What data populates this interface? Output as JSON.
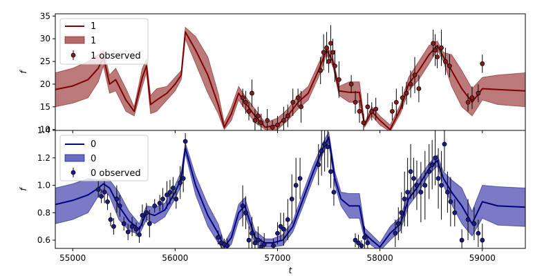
{
  "chart_data": [
    {
      "type": "line",
      "xlabel": "",
      "ylabel": "f",
      "xlim": [
        54830,
        59420
      ],
      "ylim": [
        9.8,
        35.5
      ],
      "yticks": [
        10,
        15,
        20,
        25,
        30,
        35
      ],
      "xticks": [
        55000,
        56000,
        57000,
        58000,
        59000
      ],
      "show_xticklabels": false,
      "legend_position": "top-left",
      "colors": {
        "line": "#800000",
        "band": "#b36b6b",
        "marker": "#8b1a1a"
      },
      "legend": {
        "line": "1",
        "band": "1",
        "observed": "1 observed"
      },
      "series": [
        {
          "name": "1",
          "x": [
            54830,
            55000,
            55150,
            55250,
            55300,
            55360,
            55420,
            55520,
            55600,
            55680,
            55720,
            55760,
            55820,
            55920,
            56000,
            56060,
            56100,
            56200,
            56320,
            56420,
            56480,
            56550,
            56620,
            56680,
            56780,
            56880,
            57000,
            57100,
            57200,
            57300,
            57400,
            57480,
            57540,
            57600,
            57700,
            57800,
            57850,
            57920,
            58000,
            58100,
            58200,
            58280,
            58380,
            58480,
            58560,
            58620,
            58700,
            58800,
            58900,
            59000,
            59150,
            59420
          ],
          "mean": [
            18.8,
            19.6,
            21.0,
            23.5,
            26.0,
            20.0,
            21.0,
            16.5,
            14.0,
            21.5,
            24.0,
            15.5,
            16.5,
            18.0,
            20.0,
            22.0,
            31.5,
            27.5,
            22.0,
            15.5,
            10.5,
            13.5,
            18.0,
            16.0,
            13.0,
            10.5,
            11.0,
            13.0,
            16.0,
            18.0,
            23.0,
            27.5,
            25.0,
            18.5,
            18.2,
            18.2,
            11.0,
            14.0,
            12.0,
            10.0,
            14.5,
            20.0,
            23.0,
            26.5,
            28.5,
            26.0,
            23.0,
            19.0,
            16.0,
            19.0,
            18.8,
            18.5
          ],
          "lower": [
            15.0,
            15.8,
            17.0,
            20.5,
            24.0,
            18.0,
            18.5,
            14.0,
            13.0,
            19.5,
            22.5,
            13.5,
            14.0,
            16.5,
            18.5,
            21.0,
            30.0,
            24.5,
            18.0,
            13.5,
            10.0,
            12.0,
            16.5,
            14.5,
            11.5,
            10.0,
            10.0,
            12.0,
            14.5,
            16.5,
            21.5,
            26.5,
            24.0,
            17.5,
            16.0,
            16.0,
            10.5,
            13.0,
            11.0,
            9.5,
            13.5,
            18.5,
            21.0,
            24.5,
            27.5,
            25.0,
            19.5,
            15.0,
            13.0,
            16.5,
            15.5,
            15.0
          ],
          "upper": [
            22.5,
            23.5,
            25.0,
            26.5,
            27.5,
            22.0,
            23.5,
            19.0,
            15.0,
            23.5,
            25.5,
            17.5,
            19.0,
            19.5,
            21.5,
            23.0,
            32.5,
            30.5,
            26.0,
            18.0,
            11.5,
            15.0,
            19.5,
            17.5,
            14.5,
            11.5,
            12.5,
            14.5,
            17.5,
            19.5,
            24.5,
            28.5,
            26.0,
            19.5,
            20.5,
            20.5,
            11.5,
            15.0,
            13.0,
            11.0,
            15.5,
            21.5,
            25.0,
            28.5,
            29.5,
            27.0,
            26.5,
            23.0,
            19.0,
            21.5,
            22.0,
            22.5
          ]
        }
      ],
      "observed": {
        "name": "1 observed",
        "x": [
          56660,
          56690,
          56720,
          56750,
          56780,
          56810,
          56840,
          56900,
          56950,
          57000,
          57060,
          57100,
          57150,
          57200,
          57230,
          57420,
          57450,
          57480,
          57500,
          57520,
          57540,
          57560,
          57600,
          57720,
          57760,
          57800,
          57840,
          57880,
          57920,
          57960,
          58120,
          58160,
          58220,
          58260,
          58300,
          58340,
          58380,
          58520,
          58540,
          58560,
          58600,
          58640,
          58680,
          58860,
          58900,
          58960,
          59000
        ],
        "y": [
          17.0,
          16.0,
          14.0,
          18.0,
          12.0,
          13.0,
          11.5,
          12.0,
          10.5,
          11.0,
          12.0,
          13.0,
          16.0,
          17.0,
          15.0,
          23.0,
          27.0,
          28.0,
          25.0,
          29.0,
          27.0,
          24.0,
          21.0,
          20.0,
          16.0,
          14.0,
          11.5,
          15.0,
          14.0,
          14.5,
          14.0,
          16.0,
          17.0,
          18.0,
          20.0,
          22.0,
          19.0,
          29.0,
          27.5,
          26.0,
          28.0,
          25.0,
          24.0,
          16.0,
          17.0,
          18.0,
          24.5
        ],
        "yerr": [
          2.0,
          2.5,
          2.0,
          3.0,
          2.5,
          2.0,
          2.0,
          2.5,
          1.5,
          2.0,
          3.0,
          2.5,
          3.0,
          2.0,
          3.5,
          3.0,
          4.0,
          3.5,
          2.5,
          4.0,
          3.0,
          3.5,
          4.0,
          2.0,
          2.5,
          2.5,
          2.0,
          3.0,
          2.0,
          2.5,
          2.0,
          3.0,
          2.5,
          2.5,
          3.0,
          4.0,
          3.0,
          3.0,
          3.5,
          2.5,
          4.0,
          3.0,
          2.5,
          2.0,
          2.5,
          2.0,
          2.0
        ]
      }
    },
    {
      "type": "line",
      "xlabel": "t",
      "ylabel": "f",
      "xlim": [
        54830,
        59420
      ],
      "ylim": [
        0.54,
        1.4
      ],
      "yticks": [
        0.6,
        0.8,
        1.0,
        1.2,
        1.4
      ],
      "xticks": [
        55000,
        56000,
        57000,
        58000,
        59000
      ],
      "show_xticklabels": true,
      "legend_position": "top-left",
      "colors": {
        "line": "#000080",
        "band": "#6b6bbf",
        "marker": "#1a1a8b"
      },
      "legend": {
        "line": "0",
        "band": "0",
        "observed": "0 observed"
      },
      "series": [
        {
          "name": "0",
          "x": [
            54830,
            55000,
            55150,
            55250,
            55300,
            55360,
            55450,
            55550,
            55650,
            55720,
            55800,
            55900,
            56000,
            56060,
            56100,
            56200,
            56320,
            56420,
            56480,
            56550,
            56620,
            56680,
            56780,
            56880,
            56950,
            57050,
            57150,
            57250,
            57350,
            57450,
            57500,
            57560,
            57620,
            57700,
            57800,
            57850,
            57920,
            58000,
            58100,
            58200,
            58280,
            58380,
            58480,
            58560,
            58620,
            58700,
            58800,
            58900,
            59000,
            59150,
            59420
          ],
          "mean": [
            0.86,
            0.89,
            0.93,
            0.98,
            1.01,
            0.98,
            0.85,
            0.74,
            0.68,
            0.8,
            0.78,
            0.82,
            0.95,
            1.05,
            1.27,
            1.0,
            0.78,
            0.65,
            0.55,
            0.62,
            0.8,
            0.85,
            0.62,
            0.58,
            0.58,
            0.6,
            0.7,
            0.9,
            1.1,
            1.28,
            1.35,
            1.05,
            0.9,
            0.85,
            0.85,
            0.65,
            0.6,
            0.55,
            0.65,
            0.72,
            0.9,
            1.0,
            1.12,
            1.18,
            1.05,
            0.95,
            0.85,
            0.72,
            0.88,
            0.85,
            0.84
          ],
          "lower": [
            0.72,
            0.75,
            0.8,
            0.92,
            0.97,
            0.92,
            0.75,
            0.67,
            0.64,
            0.75,
            0.72,
            0.77,
            0.9,
            1.0,
            1.23,
            0.93,
            0.7,
            0.58,
            0.52,
            0.57,
            0.74,
            0.79,
            0.57,
            0.55,
            0.55,
            0.56,
            0.66,
            0.85,
            1.05,
            1.24,
            1.31,
            1.0,
            0.85,
            0.76,
            0.76,
            0.61,
            0.56,
            0.52,
            0.6,
            0.67,
            0.85,
            0.95,
            1.08,
            1.14,
            1.0,
            0.86,
            0.72,
            0.63,
            0.76,
            0.71,
            0.7
          ],
          "upper": [
            0.98,
            1.01,
            1.05,
            1.04,
            1.05,
            1.04,
            0.95,
            0.81,
            0.72,
            0.85,
            0.84,
            0.87,
            1.0,
            1.1,
            1.31,
            1.07,
            0.86,
            0.72,
            0.58,
            0.67,
            0.86,
            0.91,
            0.67,
            0.61,
            0.61,
            0.64,
            0.74,
            0.95,
            1.15,
            1.32,
            1.39,
            1.1,
            0.95,
            0.94,
            0.94,
            0.69,
            0.64,
            0.58,
            0.7,
            0.77,
            0.95,
            1.05,
            1.16,
            1.22,
            1.1,
            1.04,
            0.98,
            0.81,
            1.0,
            0.99,
            0.98
          ]
        }
      ],
      "observed": {
        "name": "0 observed",
        "x": [
          55250,
          55280,
          55310,
          55340,
          55370,
          55400,
          55430,
          55460,
          55500,
          55540,
          55580,
          55620,
          55650,
          55680,
          55720,
          55750,
          55800,
          55850,
          55880,
          55920,
          55950,
          55980,
          56010,
          56050,
          56080,
          56100,
          56420,
          56450,
          56480,
          56510,
          56660,
          56690,
          56720,
          56750,
          56780,
          56810,
          56840,
          56870,
          56960,
          57000,
          57030,
          57060,
          57100,
          57140,
          57180,
          57220,
          57400,
          57430,
          57460,
          57490,
          57520,
          57550,
          57760,
          57790,
          57820,
          57850,
          57880,
          58150,
          58180,
          58210,
          58240,
          58270,
          58300,
          58330,
          58360,
          58400,
          58440,
          58480,
          58510,
          58540,
          58570,
          58600,
          58630,
          58660,
          58690,
          58730,
          58800,
          58860,
          58920,
          58960,
          59000
        ],
        "y": [
          0.97,
          0.92,
          0.95,
          0.88,
          0.75,
          0.7,
          0.9,
          0.85,
          0.72,
          0.66,
          0.7,
          0.68,
          0.64,
          0.78,
          0.8,
          0.72,
          0.85,
          0.87,
          0.9,
          0.93,
          0.95,
          0.98,
          0.9,
          1.02,
          1.05,
          1.32,
          0.62,
          0.58,
          0.57,
          0.56,
          0.85,
          0.8,
          0.6,
          0.65,
          0.58,
          0.6,
          0.55,
          0.57,
          0.56,
          0.65,
          0.7,
          0.68,
          0.75,
          0.9,
          1.0,
          1.05,
          1.15,
          1.25,
          1.3,
          1.28,
          1.1,
          0.95,
          0.6,
          0.58,
          0.56,
          0.62,
          0.58,
          0.65,
          0.72,
          0.8,
          0.9,
          0.95,
          1.1,
          1.05,
          1.0,
          0.95,
          1.0,
          1.1,
          1.15,
          1.2,
          1.05,
          1.0,
          1.3,
          0.95,
          0.88,
          0.8,
          0.6,
          0.75,
          0.72,
          0.65,
          0.6
        ],
        "yerr": [
          0.06,
          0.05,
          0.08,
          0.06,
          0.05,
          0.06,
          0.1,
          0.08,
          0.05,
          0.06,
          0.07,
          0.05,
          0.06,
          0.08,
          0.07,
          0.1,
          0.05,
          0.06,
          0.08,
          0.1,
          0.09,
          0.08,
          0.07,
          0.12,
          0.1,
          0.06,
          0.05,
          0.06,
          0.04,
          0.05,
          0.15,
          0.12,
          0.1,
          0.12,
          0.08,
          0.1,
          0.06,
          0.08,
          0.05,
          0.08,
          0.1,
          0.12,
          0.15,
          0.18,
          0.2,
          0.15,
          0.15,
          0.18,
          0.2,
          0.15,
          0.12,
          0.1,
          0.05,
          0.06,
          0.04,
          0.08,
          0.05,
          0.1,
          0.12,
          0.15,
          0.2,
          0.25,
          0.2,
          0.15,
          0.18,
          0.22,
          0.25,
          0.2,
          0.18,
          0.2,
          0.22,
          0.25,
          0.2,
          0.15,
          0.18,
          0.1,
          0.08,
          0.15,
          0.12,
          0.1,
          0.12
        ]
      }
    }
  ]
}
